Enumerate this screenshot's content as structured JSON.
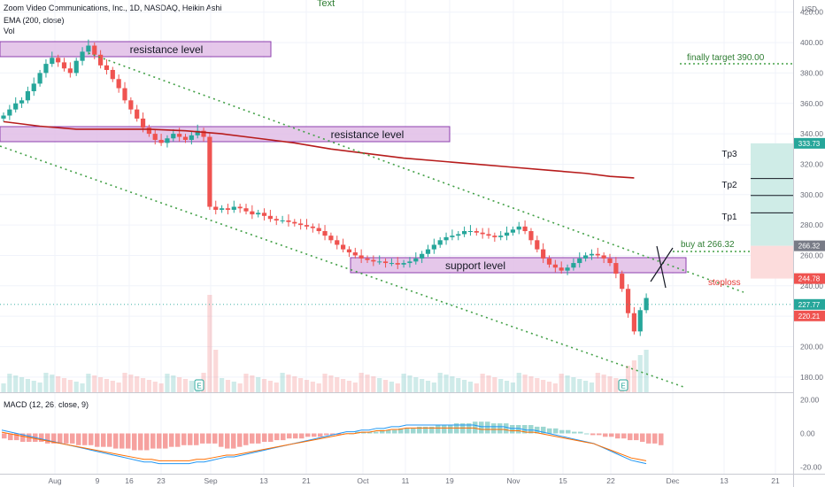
{
  "header": {
    "symbol": "Zoom Video Communications, Inc., 1D, NASDAQ, Heikin Ashi",
    "ema": "EMA (200, close)",
    "vol": "Vol",
    "top_text": "Text"
  },
  "macd_label": "MACD (12, 26, close, 9)",
  "currency": "USD",
  "chart_data": {
    "type": "candlestick",
    "title": "Zoom Video Communications, Inc., 1D, NASDAQ, Heikin Ashi",
    "x_ticks": [
      "Aug",
      "9",
      "16",
      "23",
      "Sep",
      "13",
      "21",
      "Oct",
      "11",
      "19",
      "Nov",
      "15",
      "22",
      "Dec",
      "13",
      "21"
    ],
    "price_ticks": [
      420,
      400,
      380,
      360,
      340,
      320,
      300,
      280,
      260,
      240,
      220,
      200,
      180
    ],
    "price_range": [
      170,
      428
    ],
    "macd_ticks": [
      "20.00",
      "0.00",
      "-20.00"
    ],
    "macd_range": [
      -24,
      24
    ],
    "candles_close": [
      352,
      356,
      360,
      362,
      368,
      373,
      380,
      386,
      390,
      387,
      383,
      380,
      388,
      394,
      398,
      392,
      385,
      382,
      376,
      370,
      362,
      356,
      350,
      344,
      340,
      336,
      334,
      337,
      340,
      338,
      336,
      339,
      342,
      338,
      292,
      290,
      291,
      290,
      292,
      291,
      289,
      287,
      288,
      286,
      284,
      283,
      283,
      282,
      281,
      280,
      279,
      278,
      276,
      273,
      270,
      267,
      264,
      262,
      260,
      258,
      257,
      256,
      256,
      255,
      255,
      254,
      255,
      256,
      258,
      261,
      264,
      267,
      270,
      272,
      273,
      274,
      276,
      276,
      275,
      274,
      273,
      272,
      273,
      275,
      277,
      279,
      276,
      270,
      264,
      258,
      254,
      252,
      250,
      252,
      255,
      258,
      260,
      261,
      260,
      258,
      255,
      248,
      238,
      222,
      210,
      224,
      232
    ],
    "ema200": [
      [
        0,
        348
      ],
      [
        6,
        345
      ],
      [
        12,
        343
      ],
      [
        18,
        343
      ],
      [
        24,
        343
      ],
      [
        30,
        342
      ],
      [
        36,
        340
      ],
      [
        42,
        337
      ],
      [
        48,
        334
      ],
      [
        54,
        330
      ],
      [
        60,
        327
      ],
      [
        66,
        324
      ],
      [
        72,
        322
      ],
      [
        78,
        320
      ],
      [
        84,
        318
      ],
      [
        90,
        316
      ],
      [
        96,
        314
      ],
      [
        100,
        312
      ],
      [
        104,
        311
      ]
    ],
    "volume_profile": "low with spikes near Sep 1 and Nov 25 (earnings)",
    "current_price": 227.77,
    "labels": {
      "tag_333": "333.73",
      "tag_266": "266.32",
      "tag_244": "244.78",
      "tag_227": "227.77",
      "tag_220": "220.21"
    },
    "macd": {
      "hist": [
        -3,
        -4,
        -4,
        -5,
        -5,
        -5,
        -5,
        -6,
        -6,
        -6,
        -6,
        -6,
        -7,
        -7,
        -7,
        -8,
        -8,
        -8,
        -9,
        -9,
        -9,
        -10,
        -10,
        -10,
        -9,
        -9,
        -9,
        -8,
        -8,
        -7,
        -7,
        -7,
        -6,
        -6,
        -6,
        -8,
        -9,
        -9,
        -8,
        -7,
        -6,
        -6,
        -5,
        -5,
        -4,
        -4,
        -3,
        -3,
        -3,
        -2,
        -2,
        -2,
        -1,
        -1,
        -1,
        0,
        0,
        1,
        1,
        1,
        1,
        2,
        2,
        2,
        3,
        3,
        3,
        4,
        4,
        4,
        5,
        5,
        5,
        6,
        6,
        6,
        7,
        7,
        7,
        6,
        6,
        6,
        5,
        5,
        5,
        5,
        4,
        4,
        3,
        3,
        2,
        2,
        1,
        1,
        0,
        -1,
        -1,
        -2,
        -2,
        -3,
        -3,
        -4,
        -4,
        -5,
        -6,
        -6,
        -7
      ],
      "macd_line": [
        2,
        1,
        0,
        -1,
        -2,
        -3,
        -4,
        -5,
        -6,
        -7,
        -8,
        -9,
        -10,
        -11,
        -12,
        -13,
        -14,
        -15,
        -16,
        -17,
        -17,
        -18,
        -18,
        -18,
        -18,
        -18,
        -17,
        -17,
        -16,
        -15,
        -14,
        -14,
        -13,
        -12,
        -11,
        -10,
        -9,
        -8,
        -7,
        -6,
        -5,
        -4,
        -3,
        -2,
        -1,
        0,
        1,
        1,
        2,
        2,
        3,
        3,
        4,
        4,
        5,
        5,
        5,
        5,
        5,
        5,
        5,
        5,
        5,
        5,
        4,
        4,
        4,
        4,
        3,
        3,
        2,
        2,
        1,
        0,
        -1,
        -2,
        -3,
        -4,
        -5,
        -6,
        -8,
        -10,
        -12,
        -14,
        -16,
        -17,
        -18
      ]
    }
  },
  "annotations": {
    "resistance1": "resistance  level",
    "resistance2": "resistance  level",
    "support": "support  level",
    "final_target": "finally target 390.00",
    "buy": "buy at 266.32",
    "stoploss": "stoploss",
    "tp1": "Tp1",
    "tp2": "Tp2",
    "tp3": "Tp3"
  },
  "colors": {
    "up": "#26a69a",
    "down": "#ef5350",
    "ema": "#b71c1c",
    "trendline": "#43a047",
    "zone_fill": "#e1bee7",
    "zone_stroke": "#7b1fa2",
    "target_fill": "#cfece7",
    "stop_fill": "#fcdcdc"
  }
}
